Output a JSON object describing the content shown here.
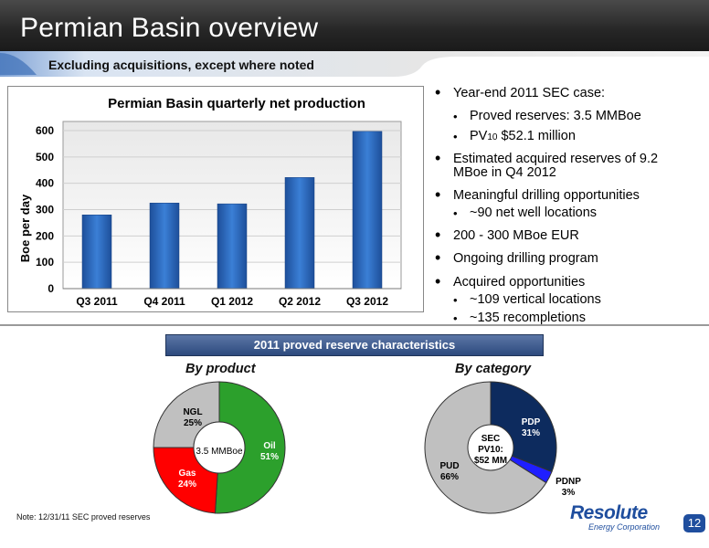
{
  "slide": {
    "title": "Permian Basin overview",
    "subtitle": "Excluding acquisitions, except where noted",
    "note": "Note:  12/31/11 SEC proved reserves",
    "page_number": "12",
    "logo": {
      "name": "Resolute",
      "tagline": "Energy Corporation"
    }
  },
  "chart_data": [
    {
      "type": "bar",
      "title": "Permian Basin quarterly net production",
      "categories": [
        "Q3 2011",
        "Q4 2011",
        "Q1 2012",
        "Q2 2012",
        "Q3 2012"
      ],
      "values": [
        280,
        325,
        322,
        422,
        597
      ],
      "xlabel": "",
      "ylabel": "Boe per day",
      "ylim": [
        0,
        600
      ],
      "yticks": [
        0,
        100,
        200,
        300,
        400,
        500,
        600
      ],
      "grid": true,
      "bar_color": "#2e6fc4"
    },
    {
      "type": "pie",
      "title": "By product",
      "center_label": "3.5 MMBoe",
      "slices": [
        {
          "label": "Oil",
          "value": 51,
          "display": "51%",
          "color": "#2ca02c"
        },
        {
          "label": "Gas",
          "value": 24,
          "display": "24%",
          "color": "#ff0000"
        },
        {
          "label": "NGL",
          "value": 25,
          "display": "25%",
          "color": "#c0c0c0"
        }
      ]
    },
    {
      "type": "pie",
      "title": "By category",
      "center_label": [
        "SEC",
        "PV10:",
        "$52 MM"
      ],
      "slices": [
        {
          "label": "PDP",
          "value": 31,
          "display": "31%",
          "color": "#0d2b5e"
        },
        {
          "label": "PDNP",
          "value": 3,
          "display": "3%",
          "color": "#1f1fff"
        },
        {
          "label": "PUD",
          "value": 66,
          "display": "66%",
          "color": "#c0c0c0"
        }
      ]
    }
  ],
  "bullets": {
    "year_end": "Year-end 2011 SEC case:",
    "proved": "Proved reserves:  3.5 MMBoe",
    "pv_prefix": "PV",
    "pv_sub": "10",
    "pv_value": " $52.1 million",
    "acquired_1": "Estimated acquired reserves of   9.2",
    "acquired_2": "MBoe in Q4 2012",
    "drilling": "Meaningful drilling opportunities",
    "net_wells": "~90 net well locations",
    "eur": "200 - 300 MBoe EUR",
    "ongoing": "Ongoing drilling program",
    "acquired_opps": "Acquired opportunities",
    "vertical": "~109 vertical locations",
    "recompletions": "~135 recompletions"
  },
  "reserves": {
    "banner": "2011 proved reserve characteristics",
    "by_product": "By product",
    "by_category": "By category"
  },
  "colors": {
    "banner": "#2d4a7e",
    "title_bar": "#262626",
    "brand": "#1f4e9e"
  }
}
